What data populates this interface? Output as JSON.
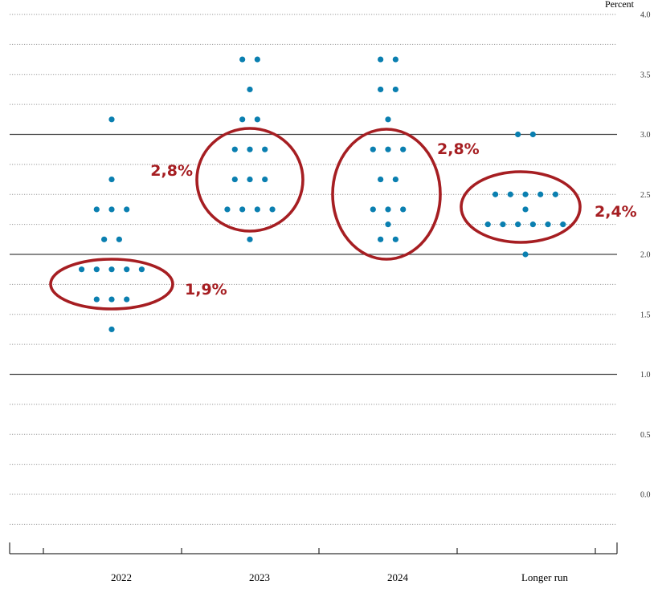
{
  "chart_data": {
    "type": "scatter",
    "title": "",
    "ylabel": "Percent",
    "xlabel": "",
    "ylim": [
      -0.5,
      4.0
    ],
    "yticks": [
      "4.0",
      "3.5",
      "3.0",
      "2.5",
      "2.0",
      "1.5",
      "1.0",
      "0.5",
      "0.0"
    ],
    "ytick_values": [
      4.0,
      3.5,
      3.0,
      2.5,
      2.0,
      1.5,
      1.0,
      0.5,
      0.0
    ],
    "grid": true,
    "categories": [
      "2022",
      "2023",
      "2024",
      "Longer run"
    ],
    "dot_color": "#0a7fb0",
    "annotation_color": "#a61e22",
    "dots": [
      {
        "x": "2022",
        "y": 3.125,
        "count": 1
      },
      {
        "x": "2022",
        "y": 2.625,
        "count": 1
      },
      {
        "x": "2022",
        "y": 2.375,
        "count": 3
      },
      {
        "x": "2022",
        "y": 2.125,
        "count": 2
      },
      {
        "x": "2022",
        "y": 1.875,
        "count": 5
      },
      {
        "x": "2022",
        "y": 1.625,
        "count": 3
      },
      {
        "x": "2022",
        "y": 1.375,
        "count": 1
      },
      {
        "x": "2023",
        "y": 3.625,
        "count": 2
      },
      {
        "x": "2023",
        "y": 3.375,
        "count": 1
      },
      {
        "x": "2023",
        "y": 3.125,
        "count": 2
      },
      {
        "x": "2023",
        "y": 2.875,
        "count": 3
      },
      {
        "x": "2023",
        "y": 2.625,
        "count": 3
      },
      {
        "x": "2023",
        "y": 2.375,
        "count": 4
      },
      {
        "x": "2023",
        "y": 2.125,
        "count": 1
      },
      {
        "x": "2024",
        "y": 3.625,
        "count": 2
      },
      {
        "x": "2024",
        "y": 3.375,
        "count": 2
      },
      {
        "x": "2024",
        "y": 3.125,
        "count": 1
      },
      {
        "x": "2024",
        "y": 2.875,
        "count": 3
      },
      {
        "x": "2024",
        "y": 2.625,
        "count": 2
      },
      {
        "x": "2024",
        "y": 2.375,
        "count": 3
      },
      {
        "x": "2024",
        "y": 2.25,
        "count": 1
      },
      {
        "x": "2024",
        "y": 2.125,
        "count": 2
      },
      {
        "x": "Longer run",
        "y": 3.0,
        "count": 2
      },
      {
        "x": "Longer run",
        "y": 2.5,
        "count": 5
      },
      {
        "x": "Longer run",
        "y": 2.375,
        "count": 1
      },
      {
        "x": "Longer run",
        "y": 2.25,
        "count": 6
      },
      {
        "x": "Longer run",
        "y": 2.0,
        "count": 1
      }
    ],
    "annotations": [
      {
        "category": "2022",
        "label": "1,9%",
        "y": 1.9
      },
      {
        "category": "2023",
        "label": "2,8%",
        "y": 2.8
      },
      {
        "category": "2024",
        "label": "2,8%",
        "y": 2.8
      },
      {
        "category": "Longer run",
        "label": "2,4%",
        "y": 2.4
      }
    ]
  }
}
